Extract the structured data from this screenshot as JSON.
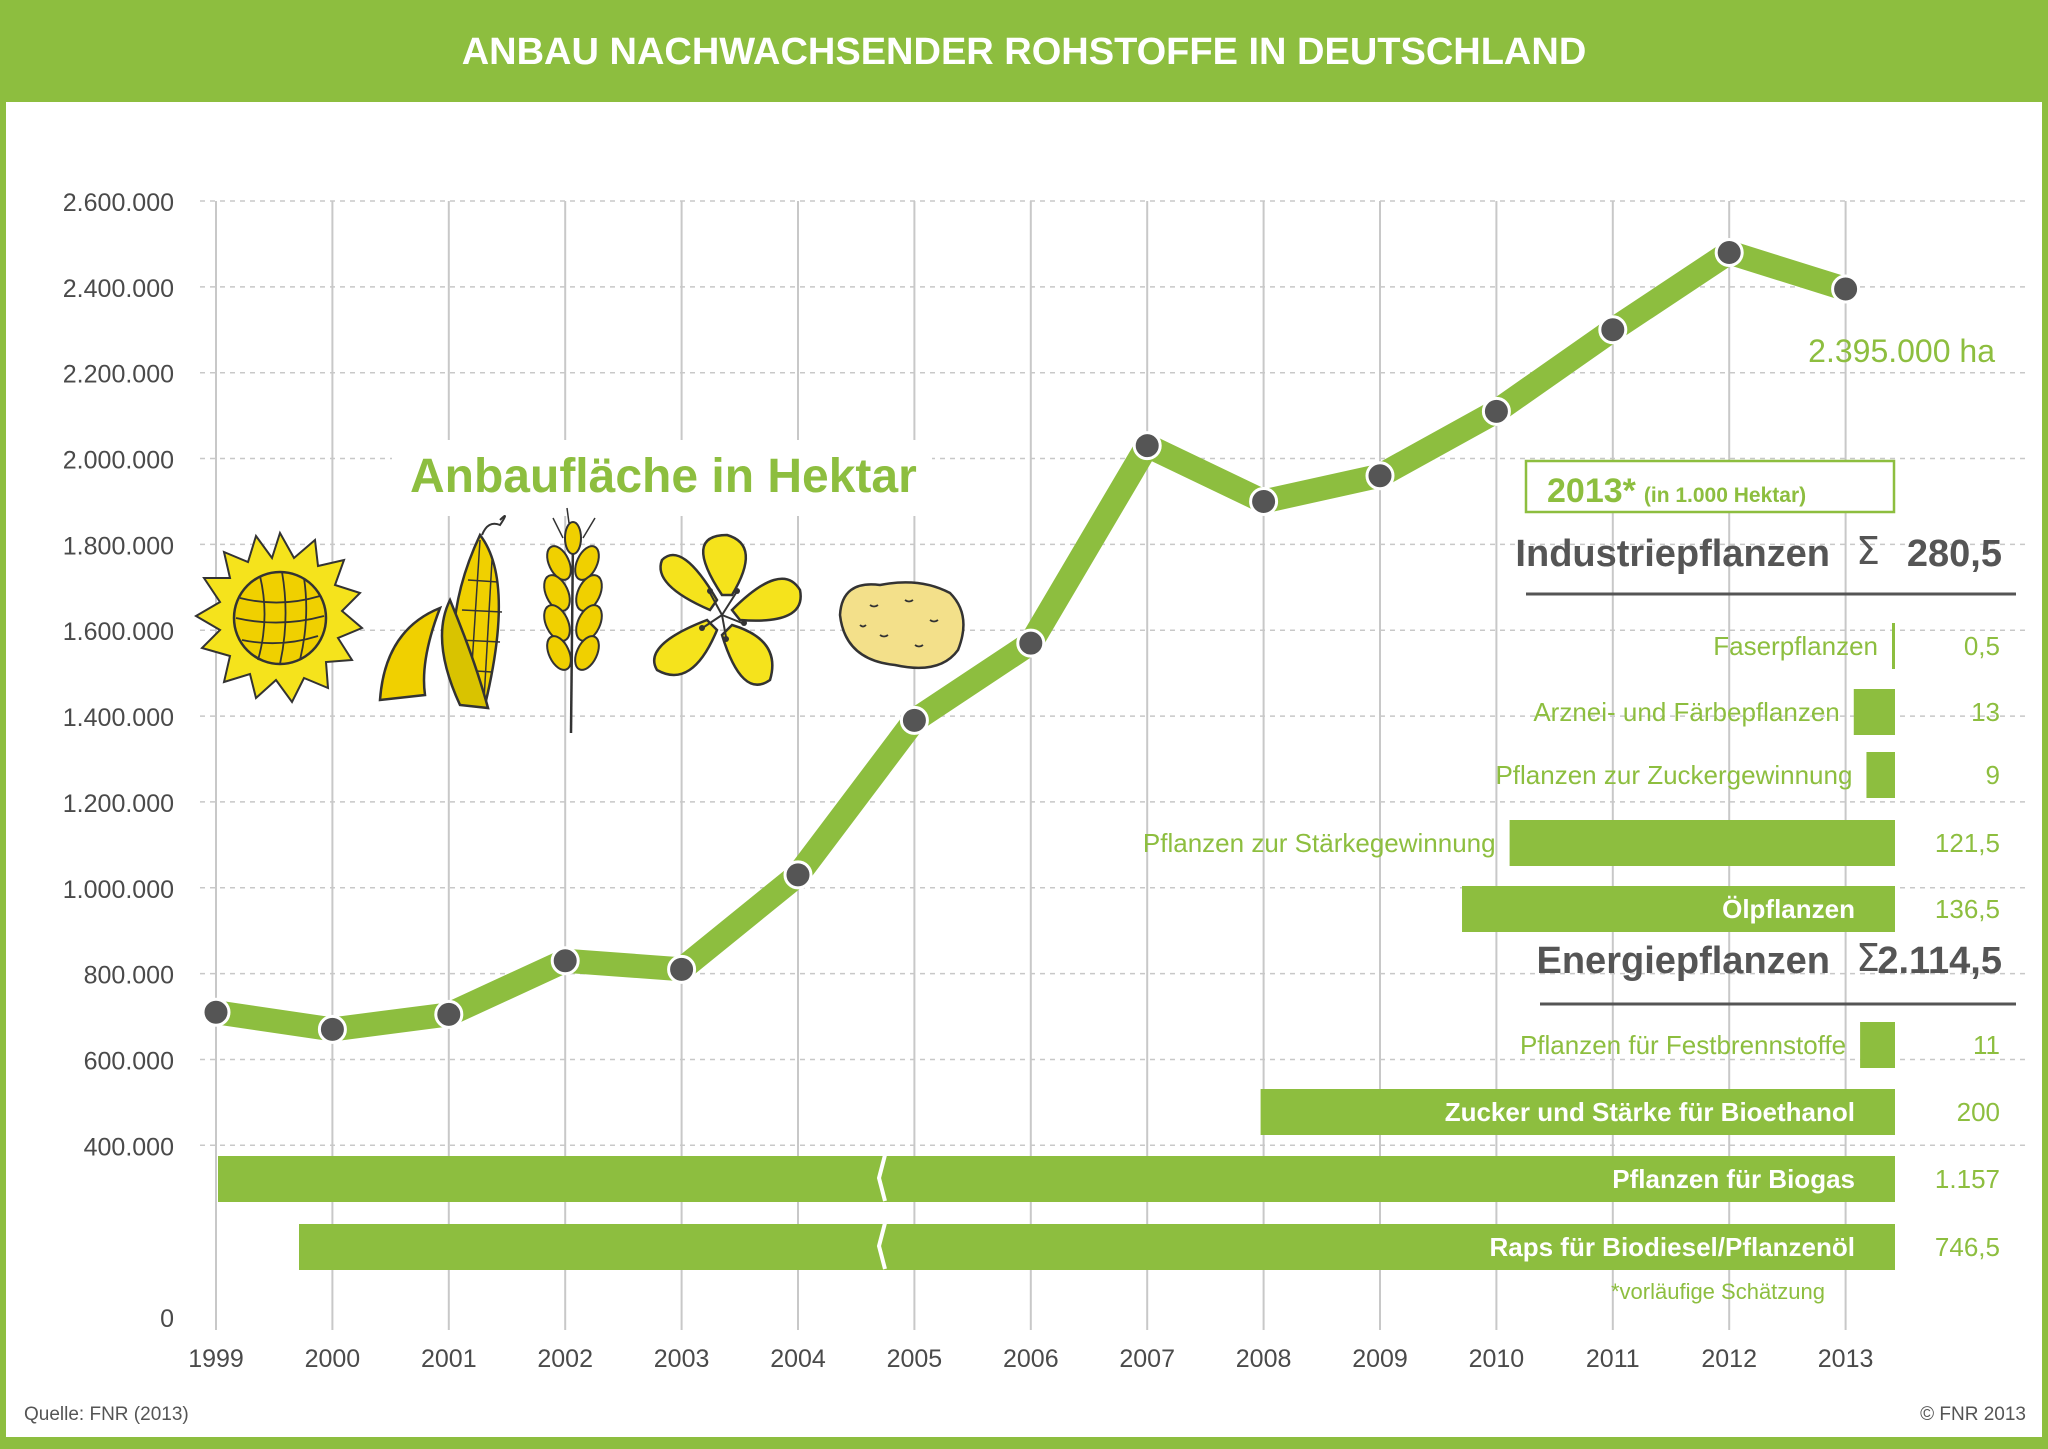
{
  "header": {
    "title": "ANBAU NACHWACHSENDER ROHSTOFFE IN DEUTSCHLAND"
  },
  "colors": {
    "green": "#8dbe3f",
    "dark": "#555555",
    "grid": "#c8c8c8",
    "text": "#4a4a4a"
  },
  "chart_data": [
    {
      "type": "line",
      "title": "Anbaufläche in Hektar",
      "x": [
        "1999",
        "2000",
        "2001",
        "2002",
        "2003",
        "2004",
        "2005",
        "2006",
        "2007",
        "2008",
        "2009",
        "2010",
        "2011",
        "2012",
        "2013"
      ],
      "values": [
        710000,
        670000,
        705000,
        830000,
        810000,
        1030000,
        1390000,
        1570000,
        2030000,
        1900000,
        1960000,
        2110000,
        2300000,
        2480000,
        2395000
      ],
      "ylim": [
        0,
        2600000
      ],
      "yticks": [
        "0",
        "400.000",
        "600.000",
        "800.000",
        "1.000.000",
        "1.200.000",
        "1.400.000",
        "1.600.000",
        "1.800.000",
        "2.000.000",
        "2.200.000",
        "2.400.000",
        "2.600.000"
      ],
      "ytick_values": [
        0,
        400000,
        600000,
        800000,
        1000000,
        1200000,
        1400000,
        1600000,
        1800000,
        2000000,
        2200000,
        2400000,
        2600000
      ],
      "end_label": "2.395.000 ha",
      "grid": true
    },
    {
      "type": "bar",
      "orientation": "horizontal",
      "title": "2013*",
      "subtitle": "(in 1.000 Hektar)",
      "groups": [
        {
          "name": "Industriepflanzen",
          "sum_symbol": "Σ",
          "sum": "280,5",
          "items": [
            {
              "label": "Faserpflanzen",
              "value": 0.5,
              "display": "0,5"
            },
            {
              "label": "Arznei- und Färbepflanzen",
              "value": 13,
              "display": "13"
            },
            {
              "label": "Pflanzen zur Zuckergewinnung",
              "value": 9,
              "display": "9"
            },
            {
              "label": "Pflanzen zur Stärkegewinnung",
              "value": 121.5,
              "display": "121,5"
            },
            {
              "label": "Ölpflanzen",
              "value": 136.5,
              "display": "136,5"
            }
          ]
        },
        {
          "name": "Energiepflanzen",
          "sum_symbol": "Σ",
          "sum": "2.114,5",
          "items": [
            {
              "label": "Pflanzen für Festbrennstoffe",
              "value": 11,
              "display": "11"
            },
            {
              "label": "Zucker und Stärke für Bioethanol",
              "value": 200,
              "display": "200"
            },
            {
              "label": "Pflanzen für Biogas",
              "value": 1157,
              "display": "1.157",
              "axis_break": true
            },
            {
              "label": "Raps für Biodiesel/Pflanzenöl",
              "value": 746.5,
              "display": "746,5",
              "axis_break": true
            }
          ]
        }
      ],
      "footnote": "*vorläufige Schätzung"
    }
  ],
  "footer": {
    "source": "Quelle: FNR (2013)",
    "copyright": "© FNR 2013"
  },
  "icons": [
    "sunflower-icon",
    "corn-cob-icon",
    "wheat-ear-icon",
    "rapeseed-flower-icon",
    "potato-icon"
  ]
}
